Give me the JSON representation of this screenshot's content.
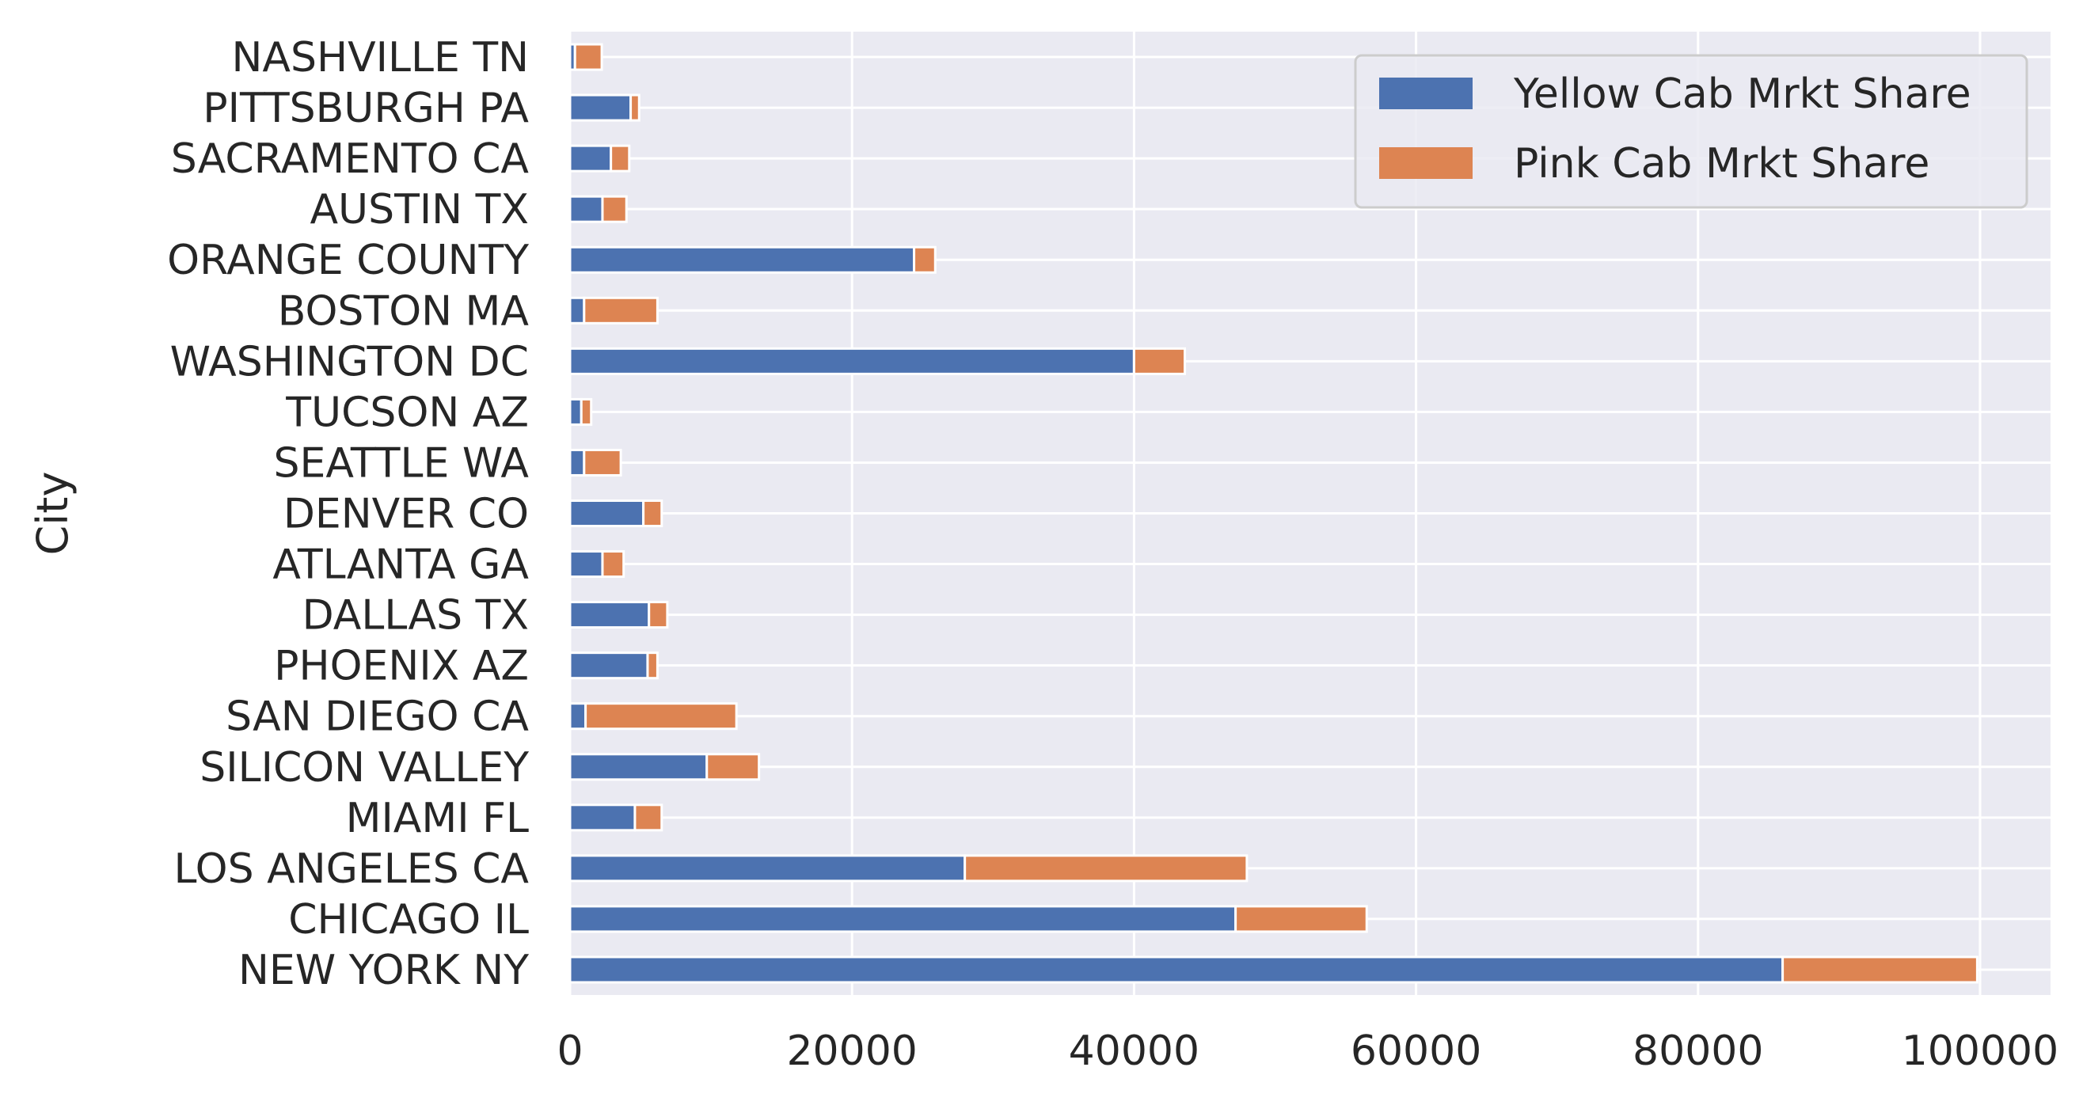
{
  "chart_data": {
    "type": "bar",
    "orientation": "horizontal",
    "stacked": true,
    "title": "",
    "xlabel": "",
    "ylabel": "City",
    "xlim": [
      0,
      105000
    ],
    "x_ticks": [
      0,
      20000,
      40000,
      60000,
      80000,
      100000
    ],
    "x_tick_labels": [
      "0",
      "20000",
      "40000",
      "60000",
      "80000",
      "100000"
    ],
    "grid": true,
    "legend_position": "top-right",
    "categories": [
      "NASHVILLE TN",
      "PITTSBURGH PA",
      "SACRAMENTO CA",
      "AUSTIN TX",
      "ORANGE COUNTY",
      "BOSTON MA",
      "WASHINGTON DC",
      "TUCSON AZ",
      "SEATTLE WA",
      "DENVER CO",
      "ATLANTA GA",
      "DALLAS TX",
      "PHOENIX AZ",
      "SAN DIEGO CA",
      "SILICON VALLEY",
      "MIAMI FL",
      "LOS ANGELES CA",
      "CHICAGO IL",
      "NEW YORK NY"
    ],
    "series": [
      {
        "name": "Yellow Cab Mrkt Share",
        "color": "#4c72b0",
        "values": [
          350,
          4300,
          2900,
          2300,
          24400,
          1000,
          40000,
          800,
          1000,
          5200,
          2300,
          5600,
          5500,
          1100,
          9700,
          4600,
          28000,
          47200,
          86000
        ]
      },
      {
        "name": "Pink Cab Mrkt Share",
        "color": "#dd8452",
        "values": [
          1900,
          600,
          1300,
          1700,
          1500,
          5200,
          3600,
          700,
          2600,
          1300,
          1500,
          1300,
          700,
          10700,
          3700,
          1900,
          20000,
          9300,
          13800
        ]
      }
    ]
  },
  "colors": {
    "plot_background": "#eaeaf2",
    "grid": "#ffffff",
    "text": "#262626"
  }
}
